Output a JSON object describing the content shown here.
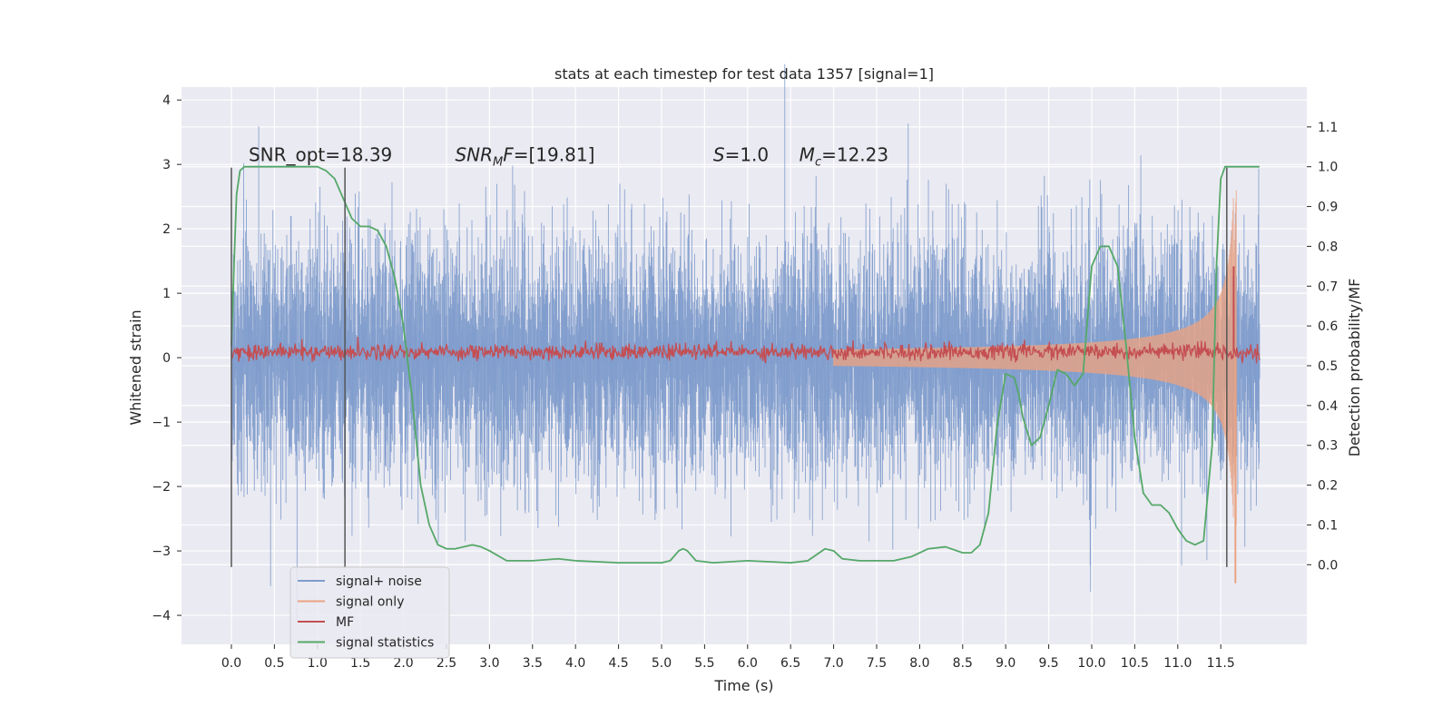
{
  "chart_data": {
    "type": "line",
    "title": "stats at each timestep for test data 1357 [signal=1]",
    "xlabel": "Time (s)",
    "ylabel_left": "Whitened strain",
    "ylabel_right": "Detection probability/MF",
    "xlim": [
      -0.58,
      12.5
    ],
    "ylim_left": [
      -4.45,
      4.2
    ],
    "ylim_right": [
      -0.2,
      1.2
    ],
    "x_ticks": [
      0.0,
      0.5,
      1.0,
      1.5,
      2.0,
      2.5,
      3.0,
      3.5,
      4.0,
      4.5,
      5.0,
      5.5,
      6.0,
      6.5,
      7.0,
      7.5,
      8.0,
      8.5,
      9.0,
      9.5,
      10.0,
      10.5,
      11.0,
      11.5
    ],
    "x_tick_labels": [
      "0.0",
      "0.5",
      "1.0",
      "1.5",
      "2.0",
      "2.5",
      "3.0",
      "3.5",
      "4.0",
      "4.5",
      "5.0",
      "5.5",
      "6.0",
      "6.5",
      "7.0",
      "7.5",
      "8.0",
      "8.5",
      "9.0",
      "9.5",
      "10.0",
      "10.5",
      "11.0",
      "11.5"
    ],
    "y_left_ticks": [
      -4,
      -3,
      -2,
      -1,
      0,
      1,
      2,
      3,
      4
    ],
    "y_left_tick_labels": [
      "−4",
      "−3",
      "−2",
      "−1",
      "0",
      "1",
      "2",
      "3",
      "4"
    ],
    "y_right_ticks": [
      0.0,
      0.1,
      0.2,
      0.3,
      0.4,
      0.5,
      0.6,
      0.7,
      0.8,
      0.9,
      1.0,
      1.1
    ],
    "y_right_tick_labels": [
      "0.0",
      "0.1",
      "0.2",
      "0.3",
      "0.4",
      "0.5",
      "0.6",
      "0.7",
      "0.8",
      "0.9",
      "1.0",
      "1.1"
    ],
    "grid": true,
    "legend_position": "lower-left",
    "annotations": [
      {
        "text": "SNR_opt=18.39",
        "x": 0.2,
        "y": 3.05
      },
      {
        "text": "SNR_MF=[19.81]",
        "x": 2.6,
        "y": 3.05
      },
      {
        "text": "S=1.0",
        "x": 5.6,
        "y": 3.05
      },
      {
        "text": "M_c=12.23",
        "x": 6.6,
        "y": 3.05
      }
    ],
    "vertical_markers": {
      "x": [
        0.0,
        1.32,
        11.57
      ],
      "y_range": [
        -3.25,
        2.95
      ],
      "color": "#555555"
    },
    "series": [
      {
        "name": "signal+ noise",
        "axis": "left",
        "color": "#7f9ccc",
        "x_range": [
          0.0,
          11.95
        ],
        "envelope_std": 0.95,
        "extreme_range": [
          -4.1,
          3.8
        ]
      },
      {
        "name": "signal only",
        "axis": "left",
        "color": "#e9a383",
        "x_range": [
          7.0,
          11.68
        ],
        "amplitude_start": 0.02,
        "amplitude_peak": 2.6,
        "peak_time": 11.65,
        "final_dip": -3.5
      },
      {
        "name": "MF",
        "axis": "right",
        "color": "#c44e52",
        "x_range": [
          0.0,
          11.95
        ],
        "baseline": 0.535,
        "noise_amplitude": 0.01,
        "spike": {
          "x": 11.65,
          "value": 0.75
        }
      },
      {
        "name": "signal statistics",
        "axis": "right",
        "color": "#55a868",
        "x": [
          0.0,
          0.03,
          0.06,
          0.1,
          0.15,
          0.2,
          0.3,
          0.5,
          0.8,
          1.0,
          1.1,
          1.2,
          1.3,
          1.4,
          1.5,
          1.6,
          1.7,
          1.8,
          1.9,
          2.0,
          2.1,
          2.2,
          2.3,
          2.4,
          2.5,
          2.6,
          2.8,
          2.9,
          3.0,
          3.2,
          3.5,
          3.8,
          4.0,
          4.5,
          5.0,
          5.1,
          5.2,
          5.25,
          5.3,
          5.4,
          5.6,
          6.0,
          6.5,
          6.7,
          6.9,
          7.0,
          7.1,
          7.3,
          7.5,
          7.7,
          7.9,
          8.1,
          8.3,
          8.5,
          8.6,
          8.7,
          8.8,
          8.9,
          9.0,
          9.1,
          9.15,
          9.2,
          9.3,
          9.4,
          9.5,
          9.6,
          9.7,
          9.8,
          9.9,
          10.0,
          10.1,
          10.2,
          10.3,
          10.4,
          10.5,
          10.6,
          10.7,
          10.8,
          10.9,
          11.0,
          11.1,
          11.2,
          11.3,
          11.4,
          11.45,
          11.5,
          11.55,
          11.6,
          11.65,
          11.7,
          11.8,
          11.95
        ],
        "y": [
          0.55,
          0.75,
          0.93,
          0.99,
          1.0,
          1.0,
          1.0,
          1.0,
          1.0,
          1.0,
          0.99,
          0.97,
          0.92,
          0.87,
          0.85,
          0.85,
          0.84,
          0.8,
          0.72,
          0.6,
          0.42,
          0.2,
          0.1,
          0.05,
          0.04,
          0.04,
          0.05,
          0.045,
          0.035,
          0.01,
          0.01,
          0.015,
          0.01,
          0.005,
          0.005,
          0.01,
          0.035,
          0.04,
          0.035,
          0.01,
          0.005,
          0.01,
          0.005,
          0.01,
          0.04,
          0.035,
          0.015,
          0.01,
          0.01,
          0.01,
          0.02,
          0.04,
          0.045,
          0.03,
          0.03,
          0.05,
          0.13,
          0.35,
          0.48,
          0.47,
          0.43,
          0.37,
          0.3,
          0.32,
          0.4,
          0.49,
          0.48,
          0.45,
          0.48,
          0.75,
          0.8,
          0.8,
          0.75,
          0.55,
          0.32,
          0.18,
          0.15,
          0.15,
          0.13,
          0.09,
          0.06,
          0.05,
          0.06,
          0.3,
          0.75,
          0.97,
          1.0,
          1.0,
          1.0,
          1.0,
          1.0,
          1.0
        ]
      }
    ]
  }
}
